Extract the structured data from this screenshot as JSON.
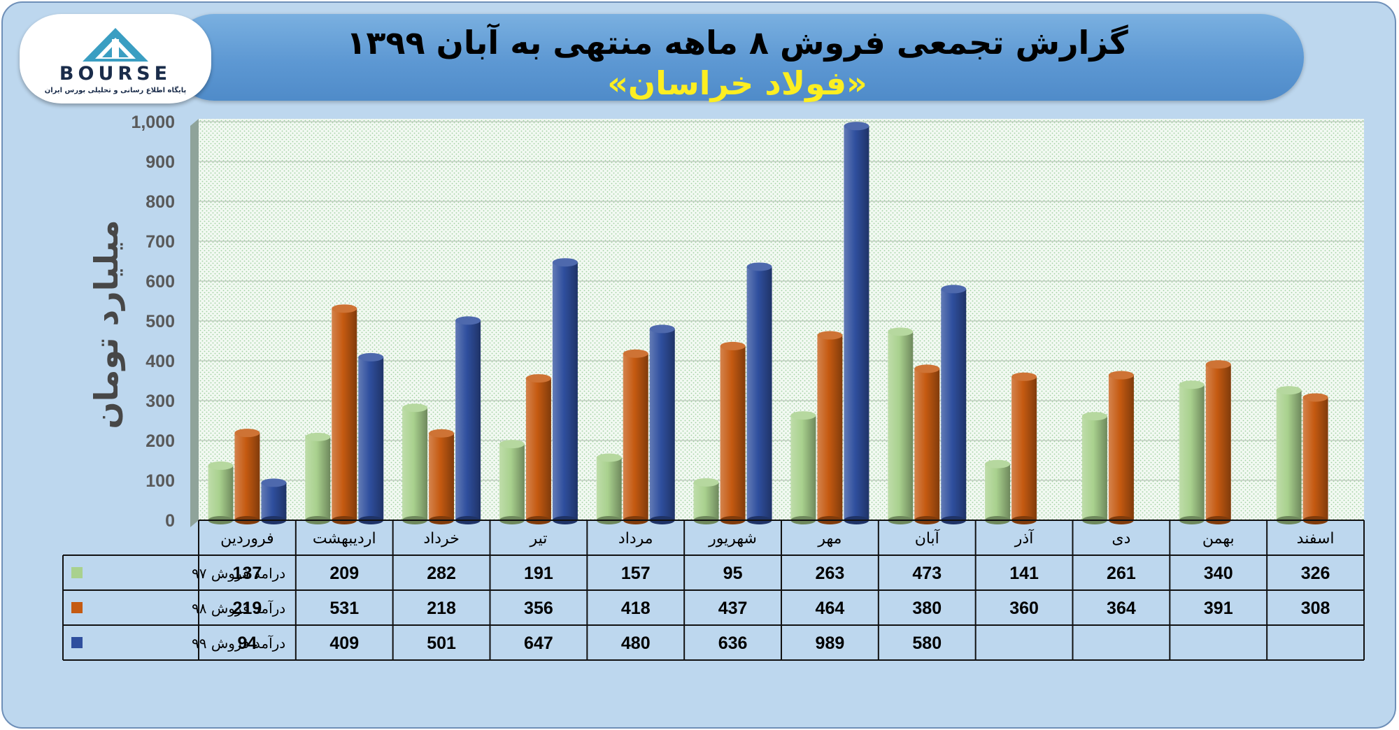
{
  "title_line1": "گزارش تجمعی فروش ۸ ماهه منتهی به آبان ۱۳۹۹",
  "title_line2": "«فولاد خراسان»",
  "logo": {
    "word": "BOURSE",
    "subtitle": "پایگاه اطلاع رسانی و تحلیلی بورس ایران"
  },
  "colors": {
    "series97": "#a9d18e",
    "series98": "#c55a11",
    "series99": "#2f4f9e",
    "plot_bg": "#f2f9f2",
    "title_yellow": "#fcee21"
  },
  "chart_data": {
    "type": "bar",
    "title": "گزارش تجمعی فروش ۸ ماهه منتهی به آبان ۱۳۹۹",
    "subtitle": "«فولاد خراسان»",
    "ylabel": "میلیارد تومان",
    "xlabel": "",
    "ylim": [
      0,
      1000
    ],
    "yticks": [
      "0",
      "100",
      "200",
      "300",
      "400",
      "500",
      "600",
      "700",
      "800",
      "900",
      "1,000"
    ],
    "grid": true,
    "legend": "data-table",
    "categories": [
      "فروردین",
      "اردیبهشت",
      "خرداد",
      "تیر",
      "مرداد",
      "شهریور",
      "مهر",
      "آبان",
      "آذر",
      "دی",
      "بهمن",
      "اسفند"
    ],
    "series": [
      {
        "name": "درامد فروش ۹۷",
        "color": "#a9d18e",
        "values": [
          137,
          209,
          282,
          191,
          157,
          95,
          263,
          473,
          141,
          261,
          340,
          326
        ]
      },
      {
        "name": "درآمد فروش ۹۸",
        "color": "#c55a11",
        "values": [
          219,
          531,
          218,
          356,
          418,
          437,
          464,
          380,
          360,
          364,
          391,
          308
        ]
      },
      {
        "name": "درآمد فروش ۹۹",
        "color": "#2f4f9e",
        "values": [
          94,
          409,
          501,
          647,
          480,
          636,
          989,
          580,
          null,
          null,
          null,
          null
        ]
      }
    ]
  }
}
